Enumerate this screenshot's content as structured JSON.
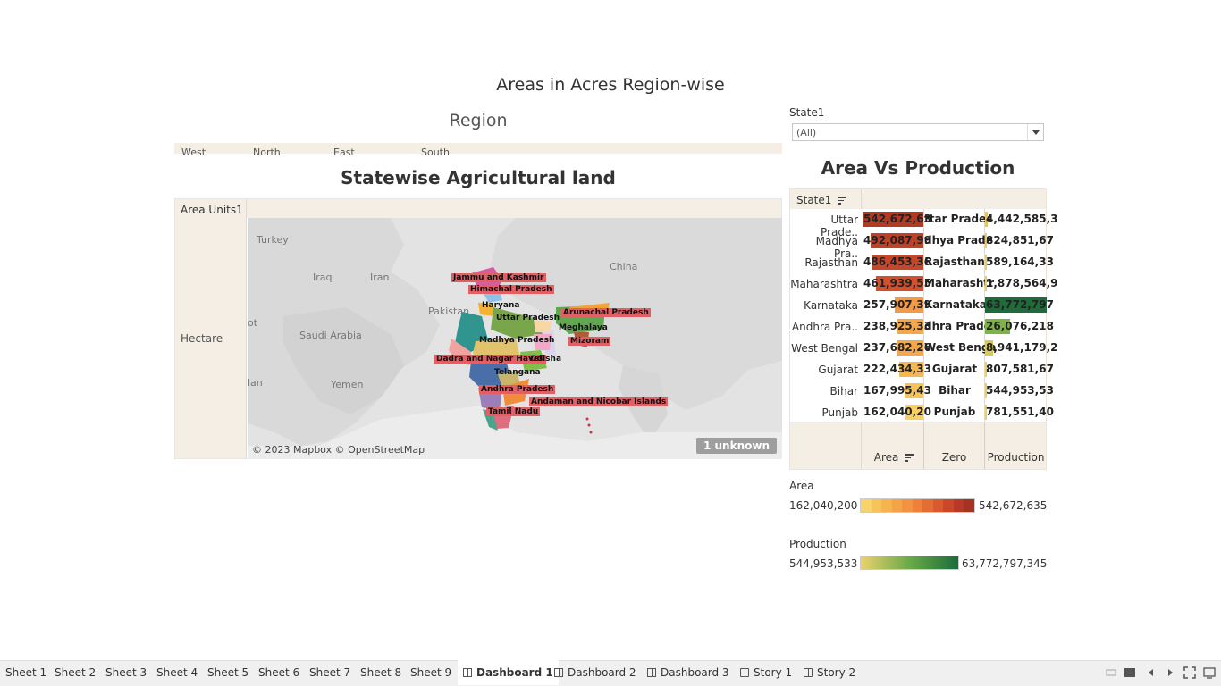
{
  "dashboard": {
    "title": "Areas in Acres Region-wise"
  },
  "region": {
    "title": "Region",
    "items": [
      "West",
      "North",
      "East",
      "South"
    ]
  },
  "map": {
    "title": "Statewise Agricultural land",
    "row_header": "Area Units1",
    "row_value": "Hectare",
    "attribution": "© 2023 Mapbox © OpenStreetMap",
    "unknown": "1 unknown",
    "countries": [
      "Turkey",
      "Iraq",
      "Iran",
      "Saudi Arabia",
      "Yemen",
      "Pakistan",
      "China",
      "ot",
      "lan"
    ],
    "states": [
      "Jammu and Kashmir",
      "Himachal Pradesh",
      "Haryana",
      "Uttar Pradesh",
      "Arunachal Pradesh",
      "Meghalaya",
      "Madhya Pradesh",
      "Mizoram",
      "Dadra and Nagar Haveli",
      "Odisha",
      "Telangana",
      "Andhra Pradesh",
      "Andaman and Nicobar Islands",
      "Tamil Nadu"
    ]
  },
  "filter": {
    "label": "State1",
    "value": "(All)"
  },
  "area_vs_production": {
    "title": "Area Vs Production",
    "state_header": "State1",
    "rows": [
      {
        "state": "Uttar Prade..",
        "area": "542,672,63",
        "zero": "ttar Prades",
        "production": "4,442,585,3",
        "area_fill": 1.0,
        "area_color": "#b23a22",
        "prod_fill": 0.05,
        "prod_color": "#e5c45c"
      },
      {
        "state": "Madhya Pra..",
        "area": "492,087,99",
        "zero": "dhya Prade",
        "production": "824,851,67",
        "area_fill": 0.87,
        "area_color": "#c04226",
        "prod_fill": 0.0,
        "prod_color": "#e9cf6b"
      },
      {
        "state": "Rajasthan",
        "area": "486,453,36",
        "zero": "Rajasthan",
        "production": "589,164,33",
        "area_fill": 0.85,
        "area_color": "#c5462a",
        "prod_fill": 0.0,
        "prod_color": "#e9cf6b"
      },
      {
        "state": "Maharashtra",
        "area": "461,939,55",
        "zero": "Maharashtr",
        "production": "1,878,564,9",
        "area_fill": 0.78,
        "area_color": "#d2502c",
        "prod_fill": 0.0,
        "prod_color": "#e9cf6b"
      },
      {
        "state": "Karnataka",
        "area": "257,907,39",
        "zero": "Karnataka",
        "production": "63,772,797",
        "area_fill": 0.47,
        "area_color": "#f39a46",
        "prod_fill": 1.0,
        "prod_color": "#1f6b3a"
      },
      {
        "state": "Andhra Pra..",
        "area": "238,925,33",
        "zero": "dhra Prade",
        "production": "26,076,218",
        "area_fill": 0.44,
        "area_color": "#f5a84b",
        "prod_fill": 0.4,
        "prod_color": "#7fb34a"
      },
      {
        "state": "West Bengal",
        "area": "237,682,26",
        "zero": "West Benga",
        "production": "8,941,179,2",
        "area_fill": 0.44,
        "area_color": "#f5a84b",
        "prod_fill": 0.13,
        "prod_color": "#d8c95c"
      },
      {
        "state": "Gujarat",
        "area": "222,434,33",
        "zero": "Gujarat",
        "production": "807,581,67",
        "area_fill": 0.4,
        "area_color": "#f6b650",
        "prod_fill": 0.0,
        "prod_color": "#e9cf6b"
      },
      {
        "state": "Bihar",
        "area": "167,995,43",
        "zero": "Bihar",
        "production": "544,953,53",
        "area_fill": 0.31,
        "area_color": "#f7c45a",
        "prod_fill": 0.0,
        "prod_color": "#e9cf6b"
      },
      {
        "state": "Punjab",
        "area": "162,040,20",
        "zero": "Punjab",
        "production": "781,551,40",
        "area_fill": 0.3,
        "area_color": "#f8cf62",
        "prod_fill": 0.0,
        "prod_color": "#e9cf6b"
      }
    ],
    "axes": [
      "Area",
      "Zero",
      "Production"
    ]
  },
  "legend": {
    "area": {
      "title": "Area",
      "min": "162,040,200",
      "max": "542,672,635",
      "colors": [
        "#f8d26a",
        "#f7c45a",
        "#f6b44f",
        "#f5a347",
        "#f39240",
        "#ee803a",
        "#e46d34",
        "#d85a2e",
        "#c9482a",
        "#b83a26",
        "#a73224"
      ]
    },
    "production": {
      "title": "Production",
      "min": "544,953,533",
      "max": "63,772,797,345",
      "color_start": "#ecd16e",
      "color_mid": "#6aaa4a",
      "color_end": "#1c6b3b"
    }
  },
  "tabs": [
    {
      "label": "Sheet 1",
      "type": "sheet"
    },
    {
      "label": "Sheet 2",
      "type": "sheet"
    },
    {
      "label": "Sheet 3",
      "type": "sheet"
    },
    {
      "label": "Sheet 4",
      "type": "sheet"
    },
    {
      "label": "Sheet 5",
      "type": "sheet"
    },
    {
      "label": "Sheet 6",
      "type": "sheet"
    },
    {
      "label": "Sheet 7",
      "type": "sheet"
    },
    {
      "label": "Sheet 8",
      "type": "sheet"
    },
    {
      "label": "Sheet 9",
      "type": "sheet"
    },
    {
      "label": "Dashboard 1",
      "type": "dashboard",
      "active": true
    },
    {
      "label": "Dashboard 2",
      "type": "dashboard"
    },
    {
      "label": "Dashboard 3",
      "type": "dashboard"
    },
    {
      "label": "Story 1",
      "type": "story"
    },
    {
      "label": "Story 2",
      "type": "story"
    }
  ],
  "controls": [
    "show-sheets-grid-icon",
    "show-filmstrip-icon",
    "prev-sheet-icon",
    "next-sheet-icon",
    "fit-icon",
    "fullscreen-icon"
  ]
}
